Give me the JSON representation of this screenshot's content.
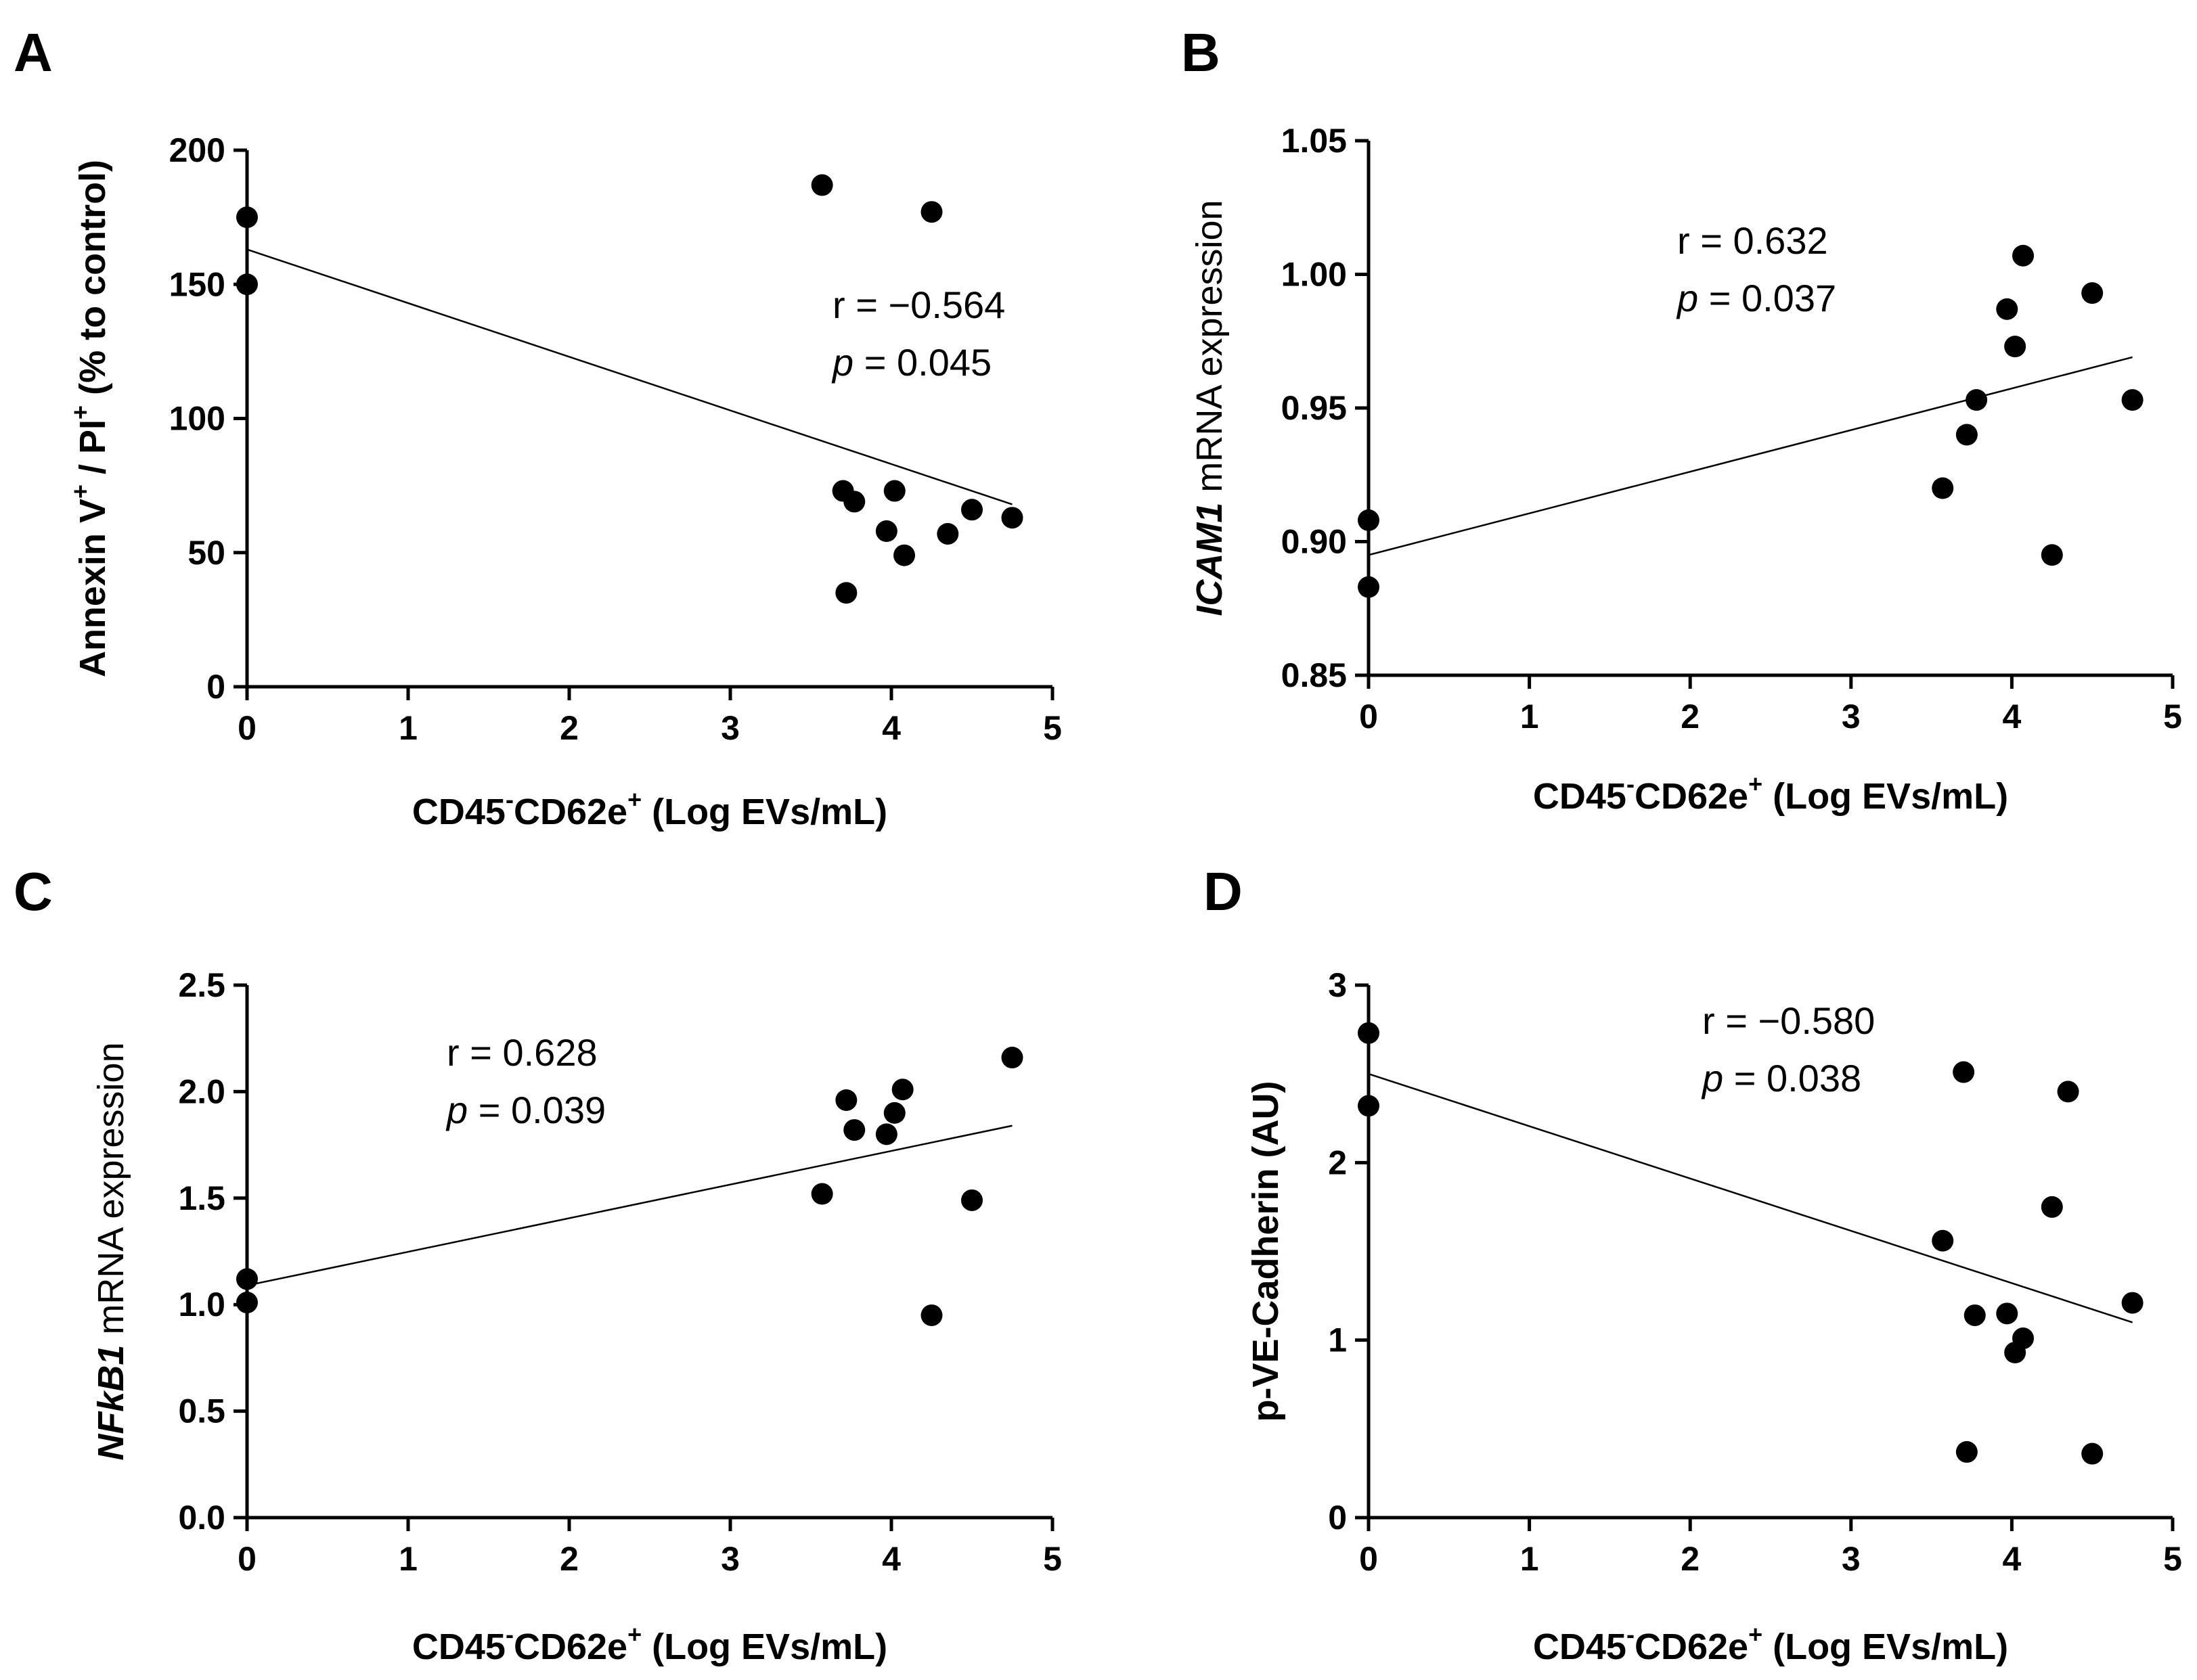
{
  "chart_data": [
    {
      "type": "scatter",
      "panel": "A",
      "xlabel_parts": [
        "CD45",
        "-",
        "CD62e",
        "+",
        " (Log EVs/mL)"
      ],
      "ylabel_parts": [
        "Annexin V",
        "+",
        " / PI",
        "+",
        "  (%  to control)"
      ],
      "xlim": [
        0,
        5
      ],
      "ylim": [
        0,
        200
      ],
      "xticks": [
        "0",
        "1",
        "2",
        "3",
        "4",
        "5"
      ],
      "yticks": [
        "0",
        "50",
        "100",
        "150",
        "200"
      ],
      "x": [
        0,
        0,
        3.57,
        4.25,
        3.7,
        3.77,
        4.02,
        3.97,
        4.08,
        4.35,
        4.5,
        4.75,
        3.72
      ],
      "y": [
        175,
        150,
        187,
        177,
        73,
        69,
        73,
        58,
        49,
        57,
        66,
        63,
        35
      ],
      "fit_line": {
        "x": [
          0,
          4.75
        ],
        "y": [
          163,
          68
        ]
      },
      "annotation": {
        "r_label": "r =  −0.564",
        "p_italic": "p",
        "p_rest": " = 0.045"
      },
      "grid": false
    },
    {
      "type": "scatter",
      "panel": "B",
      "xlabel_parts": [
        "CD45",
        "-",
        "CD62e",
        "+",
        " (Log EVs/mL)"
      ],
      "ylabel_italic": "ICAM1",
      "ylabel_rest": " mRNA expression",
      "xlim": [
        0,
        5
      ],
      "ylim": [
        0.85,
        1.05
      ],
      "xticks": [
        "0",
        "1",
        "2",
        "3",
        "4",
        "5"
      ],
      "yticks": [
        "0.85",
        "0.90",
        "0.95",
        "1.00",
        "1.05"
      ],
      "x": [
        0,
        0,
        3.57,
        3.72,
        3.78,
        3.97,
        4.02,
        4.07,
        4.25,
        4.5,
        4.75
      ],
      "y": [
        0.908,
        0.883,
        0.92,
        0.94,
        0.953,
        0.987,
        0.973,
        1.007,
        0.895,
        0.993,
        0.953
      ],
      "fit_line": {
        "x": [
          0,
          4.75
        ],
        "y": [
          0.895,
          0.969
        ]
      },
      "annotation": {
        "r_label": "r = 0.632",
        "p_italic": "p",
        "p_rest": " = 0.037"
      },
      "grid": false
    },
    {
      "type": "scatter",
      "panel": "C",
      "xlabel_parts": [
        "CD45",
        "-",
        "CD62e",
        "+",
        " (Log EVs/mL)"
      ],
      "ylabel_italic": "NFkB1",
      "ylabel_rest": " mRNA expression",
      "xlim": [
        0,
        5
      ],
      "ylim": [
        0,
        2.5
      ],
      "xticks": [
        "0",
        "1",
        "2",
        "3",
        "4",
        "5"
      ],
      "yticks": [
        "0.0",
        "0.5",
        "1.0",
        "1.5",
        "2.0",
        "2.5"
      ],
      "x": [
        0,
        0,
        3.57,
        3.72,
        3.77,
        3.97,
        4.02,
        4.07,
        4.25,
        4.5,
        4.75
      ],
      "y": [
        1.12,
        1.01,
        1.52,
        1.96,
        1.82,
        1.8,
        1.9,
        2.01,
        0.95,
        1.49,
        2.16
      ],
      "fit_line": {
        "x": [
          0,
          4.75
        ],
        "y": [
          1.09,
          1.84
        ]
      },
      "annotation": {
        "r_label": "r = 0.628",
        "p_italic": "p",
        "p_rest": " = 0.039"
      },
      "grid": false
    },
    {
      "type": "scatter",
      "panel": "D",
      "xlabel_parts": [
        "CD45",
        "-",
        "CD62e",
        "+",
        " (Log EVs/mL)"
      ],
      "ylabel": "p-VE-Cadherin (AU)",
      "xlim": [
        0,
        5
      ],
      "ylim": [
        0,
        3
      ],
      "xticks": [
        "0",
        "1",
        "2",
        "3",
        "4",
        "5"
      ],
      "yticks": [
        "0",
        "1",
        "2",
        "3"
      ],
      "x": [
        0,
        0,
        3.57,
        3.7,
        3.72,
        3.77,
        3.97,
        4.02,
        4.07,
        4.25,
        4.35,
        4.5,
        4.75
      ],
      "y": [
        2.73,
        2.32,
        1.56,
        2.51,
        0.37,
        1.14,
        1.15,
        0.93,
        1.01,
        1.75,
        2.4,
        0.36,
        1.21
      ],
      "fit_line": {
        "x": [
          0,
          4.75
        ],
        "y": [
          2.5,
          1.1
        ]
      },
      "annotation": {
        "r_label": "r =  −0.580",
        "p_italic": "p",
        "p_rest": " = 0.038"
      },
      "grid": false
    }
  ]
}
